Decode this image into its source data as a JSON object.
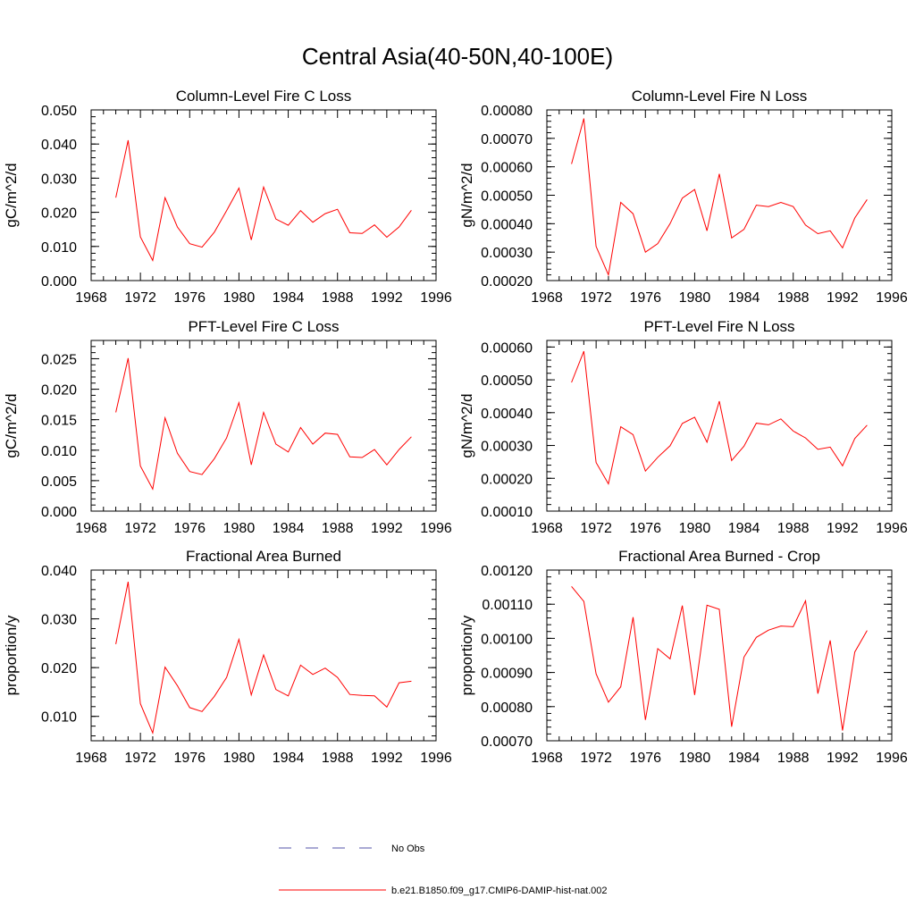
{
  "figure": {
    "title": "Central Asia(40-50N,40-100E)"
  },
  "legend": {
    "entries": [
      {
        "label": "No Obs",
        "style": "dashed",
        "color": "#5555aa"
      },
      {
        "label": "b.e21.B1850.f09_g17.CMIP6-DAMIP-hist-nat.002",
        "style": "solid",
        "color": "#ff0000"
      }
    ]
  },
  "colors": {
    "series": "#ff0000",
    "axis": "#000000"
  },
  "chart_data": [
    {
      "type": "line",
      "title": "Column-Level Fire C Loss",
      "ylabel": "gC/m^2/d",
      "xlim": [
        1968,
        1996
      ],
      "ylim": [
        0.0,
        0.05
      ],
      "xticks": [
        "1968",
        "1972",
        "1976",
        "1980",
        "1984",
        "1988",
        "1992",
        "1996"
      ],
      "yticks": [
        "0.000",
        "0.010",
        "0.020",
        "0.030",
        "0.040",
        "0.050"
      ],
      "grid": false,
      "x": [
        1970,
        1971,
        1972,
        1973,
        1974,
        1975,
        1976,
        1977,
        1978,
        1979,
        1980,
        1981,
        1982,
        1983,
        1984,
        1985,
        1986,
        1987,
        1988,
        1989,
        1990,
        1991,
        1992,
        1993,
        1994
      ],
      "series": [
        {
          "name": "b.e21.B1850.f09_g17.CMIP6-DAMIP-hist-nat.002",
          "values": [
            0.0243,
            0.0411,
            0.0128,
            0.0059,
            0.0243,
            0.0157,
            0.0108,
            0.0098,
            0.0142,
            0.0205,
            0.0271,
            0.0119,
            0.0274,
            0.018,
            0.0162,
            0.0205,
            0.0171,
            0.0196,
            0.0209,
            0.014,
            0.0138,
            0.0163,
            0.0127,
            0.0157,
            0.0206
          ]
        }
      ]
    },
    {
      "type": "line",
      "title": "Column-Level Fire N Loss",
      "ylabel": "gN/m^2/d",
      "xlim": [
        1968,
        1996
      ],
      "ylim": [
        0.0002,
        0.0008
      ],
      "xticks": [
        "1968",
        "1972",
        "1976",
        "1980",
        "1984",
        "1988",
        "1992",
        "1996"
      ],
      "yticks": [
        "0.00020",
        "0.00030",
        "0.00040",
        "0.00050",
        "0.00060",
        "0.00070",
        "0.00080"
      ],
      "grid": false,
      "x": [
        1970,
        1971,
        1972,
        1973,
        1974,
        1975,
        1976,
        1977,
        1978,
        1979,
        1980,
        1981,
        1982,
        1983,
        1984,
        1985,
        1986,
        1987,
        1988,
        1989,
        1990,
        1991,
        1992,
        1993,
        1994
      ],
      "series": [
        {
          "name": "b.e21.B1850.f09_g17.CMIP6-DAMIP-hist-nat.002",
          "values": [
            0.00061,
            0.00077,
            0.00032,
            0.00022,
            0.000475,
            0.000435,
            0.0003,
            0.00033,
            0.0004,
            0.00049,
            0.00052,
            0.000375,
            0.000575,
            0.00035,
            0.00038,
            0.000465,
            0.00046,
            0.000475,
            0.00046,
            0.000395,
            0.000365,
            0.000375,
            0.000315,
            0.00042,
            0.000485
          ]
        }
      ]
    },
    {
      "type": "line",
      "title": "PFT-Level Fire C Loss",
      "ylabel": "gC/m^2/d",
      "xlim": [
        1968,
        1996
      ],
      "ylim": [
        0.0,
        0.028
      ],
      "xticks": [
        "1968",
        "1972",
        "1976",
        "1980",
        "1984",
        "1988",
        "1992",
        "1996"
      ],
      "yticks": [
        "0.000",
        "0.005",
        "0.010",
        "0.015",
        "0.020",
        "0.025"
      ],
      "grid": false,
      "x": [
        1970,
        1971,
        1972,
        1973,
        1974,
        1975,
        1976,
        1977,
        1978,
        1979,
        1980,
        1981,
        1982,
        1983,
        1984,
        1985,
        1986,
        1987,
        1988,
        1989,
        1990,
        1991,
        1992,
        1993,
        1994
      ],
      "series": [
        {
          "name": "b.e21.B1850.f09_g17.CMIP6-DAMIP-hist-nat.002",
          "values": [
            0.0162,
            0.0251,
            0.0074,
            0.0036,
            0.0153,
            0.0095,
            0.0065,
            0.006,
            0.0086,
            0.012,
            0.0178,
            0.0076,
            0.0162,
            0.011,
            0.0097,
            0.0137,
            0.011,
            0.0128,
            0.0126,
            0.0089,
            0.0088,
            0.0101,
            0.0076,
            0.0101,
            0.0122
          ]
        }
      ]
    },
    {
      "type": "line",
      "title": "PFT-Level Fire N Loss",
      "ylabel": "gN/m^2/d",
      "xlim": [
        1968,
        1996
      ],
      "ylim": [
        0.0001,
        0.00062
      ],
      "xticks": [
        "1968",
        "1972",
        "1976",
        "1980",
        "1984",
        "1988",
        "1992",
        "1996"
      ],
      "yticks": [
        "0.00010",
        "0.00020",
        "0.00030",
        "0.00040",
        "0.00050",
        "0.00060"
      ],
      "grid": false,
      "x": [
        1970,
        1971,
        1972,
        1973,
        1974,
        1975,
        1976,
        1977,
        1978,
        1979,
        1980,
        1981,
        1982,
        1983,
        1984,
        1985,
        1986,
        1987,
        1988,
        1989,
        1990,
        1991,
        1992,
        1993,
        1994
      ],
      "series": [
        {
          "name": "b.e21.B1850.f09_g17.CMIP6-DAMIP-hist-nat.002",
          "values": [
            0.000492,
            0.000587,
            0.000248,
            0.000183,
            0.000357,
            0.000333,
            0.000222,
            0.000264,
            0.000299,
            0.000367,
            0.000386,
            0.00031,
            0.000435,
            0.000254,
            0.000298,
            0.000368,
            0.000363,
            0.000381,
            0.000344,
            0.000323,
            0.000288,
            0.000295,
            0.000238,
            0.000321,
            0.000362
          ]
        }
      ]
    },
    {
      "type": "line",
      "title": "Fractional Area Burned",
      "ylabel": "proportion/y",
      "xlim": [
        1968,
        1996
      ],
      "ylim": [
        0.005,
        0.04
      ],
      "xticks": [
        "1968",
        "1972",
        "1976",
        "1980",
        "1984",
        "1988",
        "1992",
        "1996"
      ],
      "yticks": [
        "0.010",
        "0.020",
        "0.030",
        "0.040"
      ],
      "grid": false,
      "x": [
        1970,
        1971,
        1972,
        1973,
        1974,
        1975,
        1976,
        1977,
        1978,
        1979,
        1980,
        1981,
        1982,
        1983,
        1984,
        1985,
        1986,
        1987,
        1988,
        1989,
        1990,
        1991,
        1992,
        1993,
        1994
      ],
      "series": [
        {
          "name": "b.e21.B1850.f09_g17.CMIP6-DAMIP-hist-nat.002",
          "values": [
            0.0248,
            0.0376,
            0.0126,
            0.0066,
            0.0201,
            0.0163,
            0.0118,
            0.011,
            0.0141,
            0.018,
            0.0258,
            0.0144,
            0.0226,
            0.0155,
            0.0142,
            0.0205,
            0.0186,
            0.0199,
            0.018,
            0.0145,
            0.0143,
            0.0142,
            0.0119,
            0.0169,
            0.0172
          ]
        }
      ]
    },
    {
      "type": "line",
      "title": "Fractional Area Burned - Crop",
      "ylabel": "proportion/y",
      "xlim": [
        1968,
        1996
      ],
      "ylim": [
        0.0007,
        0.0012
      ],
      "xticks": [
        "1968",
        "1972",
        "1976",
        "1980",
        "1984",
        "1988",
        "1992",
        "1996"
      ],
      "yticks": [
        "0.00070",
        "0.00080",
        "0.00090",
        "0.00100",
        "0.00110",
        "0.00120"
      ],
      "grid": false,
      "x": [
        1970,
        1971,
        1972,
        1973,
        1974,
        1975,
        1976,
        1977,
        1978,
        1979,
        1980,
        1981,
        1982,
        1983,
        1984,
        1985,
        1986,
        1987,
        1988,
        1989,
        1990,
        1991,
        1992,
        1993,
        1994
      ],
      "series": [
        {
          "name": "b.e21.B1850.f09_g17.CMIP6-DAMIP-hist-nat.002",
          "values": [
            0.001152,
            0.001108,
            0.000896,
            0.000813,
            0.000858,
            0.001062,
            0.000761,
            0.00097,
            0.00094,
            0.001096,
            0.000834,
            0.001097,
            0.001085,
            0.000741,
            0.000945,
            0.001003,
            0.001024,
            0.001036,
            0.001034,
            0.00111,
            0.000838,
            0.000994,
            0.00073,
            0.00096,
            0.001023
          ]
        }
      ]
    }
  ]
}
